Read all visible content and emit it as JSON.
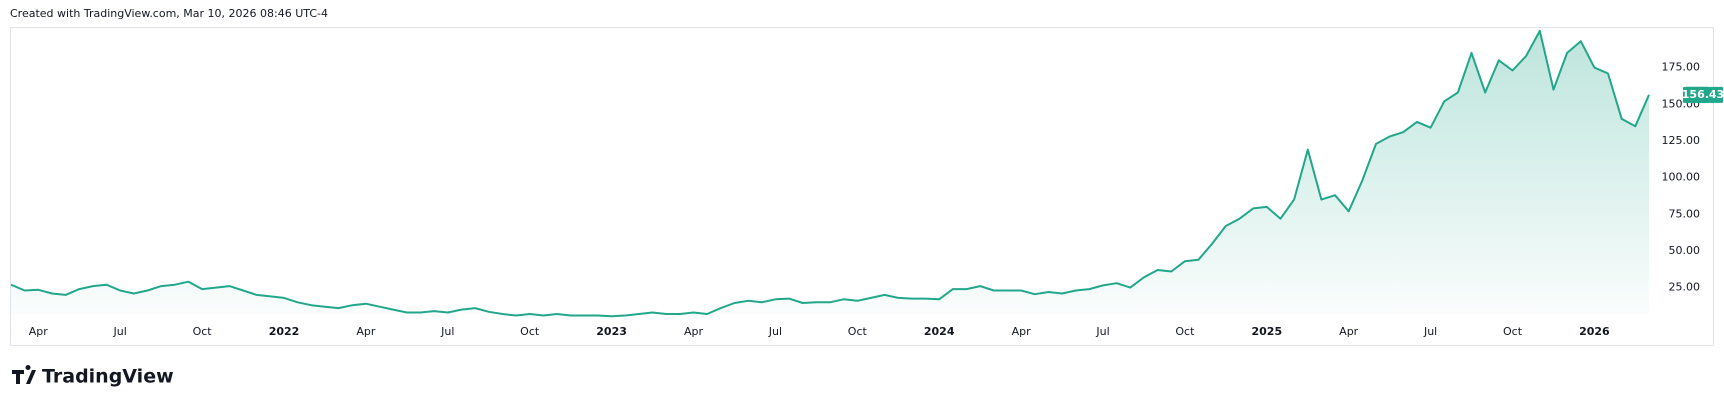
{
  "chart_data": {
    "type": "area",
    "title": "Created with TradingView.com, Mar 10, 2026 08:46 UTC-4",
    "brand": "TradingView",
    "color": "#22a78b",
    "categories": [
      null,
      null,
      "Apr",
      null,
      null,
      null,
      null,
      null,
      "Jul",
      null,
      null,
      null,
      null,
      null,
      "Oct",
      null,
      null,
      null,
      null,
      null,
      "2022",
      null,
      null,
      null,
      null,
      null,
      "Apr",
      null,
      null,
      null,
      null,
      null,
      "Jul",
      null,
      null,
      null,
      null,
      null,
      "Oct",
      null,
      null,
      null,
      null,
      null,
      "2023",
      null,
      null,
      null,
      null,
      null,
      "Apr",
      null,
      null,
      null,
      null,
      null,
      "Jul",
      null,
      null,
      null,
      null,
      null,
      "Oct",
      null,
      null,
      null,
      null,
      null,
      "2024",
      null,
      null,
      null,
      null,
      null,
      "Apr",
      null,
      null,
      null,
      null,
      null,
      "Jul",
      null,
      null,
      null,
      null,
      null,
      "Oct",
      null,
      null,
      null,
      null,
      null,
      "2025",
      null,
      null,
      null,
      null,
      null,
      "Apr",
      null,
      null,
      null,
      null,
      null,
      "Jul",
      null,
      null,
      null,
      null,
      null,
      "Oct",
      null,
      null,
      null,
      null,
      null,
      "2026",
      null,
      null,
      null,
      null
    ],
    "values": [
      27,
      23,
      23.5,
      21,
      20,
      24,
      26,
      27,
      23,
      21,
      23,
      26,
      27,
      29,
      24,
      25,
      26,
      23,
      20,
      19,
      18,
      15,
      13,
      12,
      11,
      13,
      14,
      12,
      10,
      8,
      8,
      9,
      8,
      10,
      11,
      8.5,
      7,
      6,
      7,
      6,
      7,
      6,
      6,
      6,
      5.5,
      6,
      7,
      8,
      7,
      7,
      8,
      7,
      11,
      14.5,
      16,
      15,
      17,
      17.5,
      14.5,
      15,
      15,
      17,
      16,
      18,
      20,
      18,
      17.5,
      17.5,
      17,
      24,
      24,
      26,
      23,
      23,
      23,
      20.5,
      22,
      21,
      23,
      24,
      26.5,
      28,
      25,
      32,
      37,
      36,
      43,
      44,
      55,
      67,
      72,
      79,
      80,
      72,
      85,
      119,
      85,
      88,
      77,
      98,
      123,
      128,
      131,
      138,
      134,
      152,
      158,
      185,
      158,
      180,
      173,
      183,
      200,
      160,
      185,
      193,
      175,
      171,
      140,
      135,
      156.43
    ],
    "ylim": [
      7,
      202
    ],
    "yticks": [
      {
        "value": 25,
        "label": "25.00"
      },
      {
        "value": 50,
        "label": "50.00"
      },
      {
        "value": 75,
        "label": "75.00"
      },
      {
        "value": 100,
        "label": "100.00"
      },
      {
        "value": 125,
        "label": "125.00"
      },
      {
        "value": 150,
        "label": "150.00"
      },
      {
        "value": 175,
        "label": "175.00"
      }
    ]
  }
}
